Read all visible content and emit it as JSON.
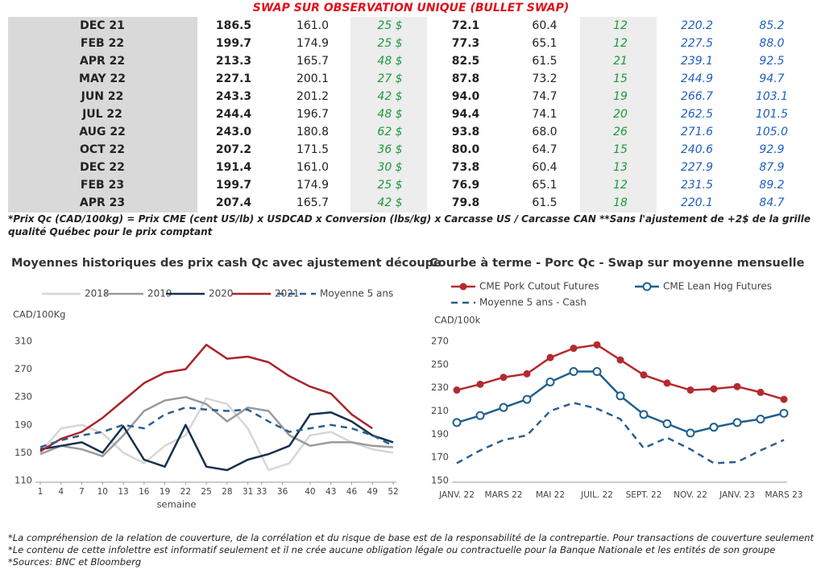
{
  "table": {
    "title": "SWAP SUR OBSERVATION UNIQUE (BULLET SWAP)",
    "rows": [
      [
        "DEC 21",
        "186.5",
        "161.0",
        "25 $",
        "72.1",
        "60.4",
        "12",
        "220.2",
        "85.2"
      ],
      [
        "FEB 22",
        "199.7",
        "174.9",
        "25 $",
        "77.3",
        "65.1",
        "12",
        "227.5",
        "88.0"
      ],
      [
        "APR 22",
        "213.3",
        "165.7",
        "48 $",
        "82.5",
        "61.5",
        "21",
        "239.1",
        "92.5"
      ],
      [
        "MAY 22",
        "227.1",
        "200.1",
        "27 $",
        "87.8",
        "73.2",
        "15",
        "244.9",
        "94.7"
      ],
      [
        "JUN 22",
        "243.3",
        "201.2",
        "42 $",
        "94.0",
        "74.7",
        "19",
        "266.7",
        "103.1"
      ],
      [
        "JUL 22",
        "244.4",
        "196.7",
        "48 $",
        "94.4",
        "74.1",
        "20",
        "262.5",
        "101.5"
      ],
      [
        "AUG 22",
        "243.0",
        "180.8",
        "62 $",
        "93.8",
        "68.0",
        "26",
        "271.6",
        "105.0"
      ],
      [
        "OCT 22",
        "207.2",
        "171.5",
        "36 $",
        "80.0",
        "64.7",
        "15",
        "240.6",
        "92.9"
      ],
      [
        "DEC 22",
        "191.4",
        "161.0",
        "30 $",
        "73.8",
        "60.4",
        "13",
        "227.9",
        "87.9"
      ],
      [
        "FEB 23",
        "199.7",
        "174.9",
        "25 $",
        "76.9",
        "65.1",
        "12",
        "231.5",
        "89.2"
      ],
      [
        "APR 23",
        "207.4",
        "165.7",
        "42 $",
        "79.8",
        "61.5",
        "18",
        "220.1",
        "84.7"
      ]
    ]
  },
  "note": "*Prix Qc (CAD/100kg) = Prix CME (cent US/lb) x USDCAD x Conversion (lbs/kg) x Carcasse US / Carcasse CAN **Sans l'ajustement de +2$ de la grille qualité Québec pour le prix comptant",
  "chart_data": [
    {
      "type": "line",
      "title": "Moyennes historiques des prix cash Qc avec ajustement découpe",
      "y_label": "CAD/100Kg",
      "x_label": "semaine",
      "x": [
        1,
        4,
        7,
        10,
        13,
        16,
        19,
        22,
        25,
        28,
        31,
        34,
        37,
        40,
        43,
        46,
        49,
        52
      ],
      "xlim": [
        1,
        52
      ],
      "xticks": [
        1,
        4,
        7,
        10,
        13,
        16,
        19,
        22,
        25,
        28,
        31,
        33,
        36,
        40,
        43,
        46,
        49,
        52
      ],
      "ylim": [
        110,
        310
      ],
      "yticks": [
        110,
        150,
        190,
        230,
        270,
        310
      ],
      "series": [
        {
          "name": "2018",
          "color": "#d6d6d6",
          "dashed": false,
          "values": [
            150,
            185,
            190,
            178,
            150,
            135,
            160,
            175,
            228,
            220,
            185,
            125,
            135,
            175,
            180,
            165,
            155,
            150
          ]
        },
        {
          "name": "2019",
          "color": "#9a9a9a",
          "dashed": false,
          "values": [
            148,
            160,
            155,
            145,
            175,
            210,
            225,
            230,
            220,
            195,
            215,
            210,
            175,
            160,
            165,
            165,
            160,
            158
          ]
        },
        {
          "name": "2020",
          "color": "#14304f",
          "dashed": false,
          "values": [
            155,
            160,
            165,
            150,
            188,
            140,
            130,
            190,
            130,
            125,
            140,
            148,
            160,
            205,
            208,
            195,
            175,
            165
          ]
        },
        {
          "name": "2021",
          "color": "#a8242a",
          "dashed": false,
          "values": [
            152,
            170,
            180,
            200,
            225,
            250,
            265,
            270,
            305,
            285,
            288,
            280,
            260,
            245,
            235,
            205,
            185,
            null
          ]
        },
        {
          "name": "Moyenne 5 ans",
          "color": "#2a5f8f",
          "dashed": true,
          "values": [
            158,
            168,
            175,
            180,
            190,
            185,
            205,
            215,
            212,
            210,
            212,
            195,
            180,
            185,
            190,
            185,
            175,
            160
          ]
        }
      ]
    },
    {
      "type": "line",
      "title": "Courbe à terme - Porc Qc - Swap sur moyenne mensuelle",
      "y_label": "CAD/100k",
      "categories": [
        "JANV. 22",
        null,
        "MARS 22",
        null,
        "MAI 22",
        null,
        "JUIL. 22",
        null,
        "SEPT. 22",
        null,
        "NOV. 22",
        null,
        "JANV. 23",
        null,
        "MARS 23"
      ],
      "ylim": [
        150,
        270
      ],
      "yticks": [
        150,
        170,
        190,
        210,
        230,
        250,
        270
      ],
      "series": [
        {
          "name": "CME Pork Cutout Futures",
          "color": "#b42a2e",
          "dashed": false,
          "marker": "dot",
          "values": [
            228,
            233,
            239,
            242,
            256,
            264,
            267,
            254,
            241,
            234,
            228,
            229,
            231,
            226,
            220
          ]
        },
        {
          "name": "CME Lean Hog Futures",
          "color": "#1f5f8f",
          "dashed": false,
          "marker": "ring",
          "values": [
            200,
            206,
            213,
            220,
            235,
            244,
            244,
            223,
            207,
            199,
            191,
            196,
            200,
            203,
            208
          ]
        },
        {
          "name": "Moyenne 5 ans - Cash",
          "color": "#2a5f8f",
          "dashed": true,
          "values": [
            165,
            176,
            185,
            189,
            210,
            217,
            212,
            203,
            178,
            187,
            177,
            165,
            166,
            176,
            185
          ]
        }
      ]
    }
  ],
  "disclaimers": [
    "*La compréhension de la relation de couverture, de la corrélation et du risque de base est de la responsabilité de la contrepartie. Pour transactions de couverture seulement",
    "*Le contenu de cette infolettre est informatif seulement et il ne crée aucune obligation légale ou contractuelle pour la Banque Nationale et les entités de son groupe",
    "*Sources: BNC et Bloomberg"
  ]
}
